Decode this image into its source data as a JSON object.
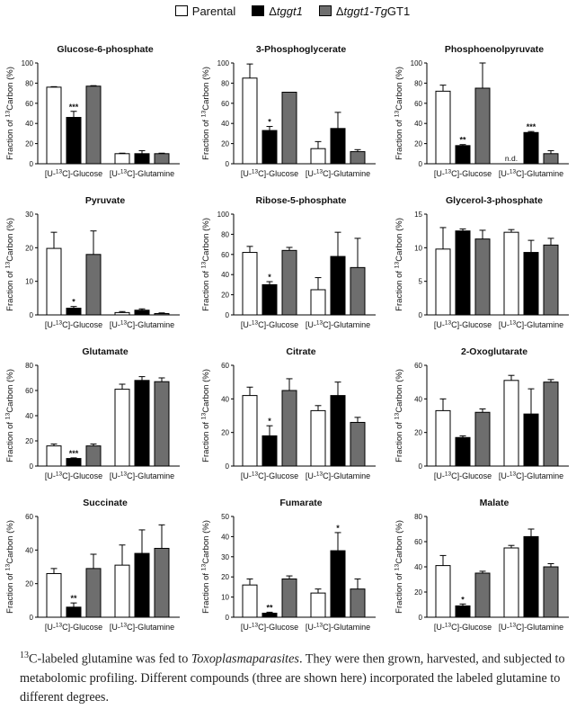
{
  "legend": {
    "parental": "Parental",
    "delta_prefix": "Δ",
    "tggt1": "tggt1",
    "comp_prefix": "Δ",
    "comp_tggt1": "tggt1-",
    "comp_tg": "Tg",
    "comp_suffix": "GT1"
  },
  "colors": {
    "parental": "#ffffff",
    "tggt1": "#000000",
    "complemented": "#6e6e6e",
    "axis": "#000000"
  },
  "ylabel": {
    "pre": "Fraction of ",
    "sup": "13",
    "post": "Carbon (%)"
  },
  "group_labels": {
    "glucose": {
      "pre": "[U-",
      "sup": "13",
      "post": "C]-Glucose"
    },
    "glutamine": {
      "pre": "[U-",
      "sup": "13",
      "post": "C]-Glutamine"
    }
  },
  "chart_data": [
    {
      "type": "bar",
      "title": "Glucose-6-phosphate",
      "ylim": [
        0,
        100
      ],
      "yticks": [
        0,
        20,
        40,
        60,
        80,
        100
      ],
      "categories": [
        "[U-13C]-Glucose",
        "[U-13C]-Glutamine"
      ],
      "series": [
        {
          "name": "Parental",
          "values": [
            76,
            10
          ],
          "errors": [
            0.5,
            0.5
          ]
        },
        {
          "name": "Δtggt1",
          "values": [
            46,
            10
          ],
          "errors": [
            6,
            3
          ]
        },
        {
          "name": "Δtggt1-TgGT1",
          "values": [
            77,
            10
          ],
          "errors": [
            0.5,
            0.5
          ]
        }
      ],
      "annotations": [
        {
          "series": 1,
          "category": 0,
          "text": "***"
        }
      ]
    },
    {
      "type": "bar",
      "title": "3-Phosphoglycerate",
      "ylim": [
        0,
        100
      ],
      "yticks": [
        0,
        20,
        40,
        60,
        80,
        100
      ],
      "categories": [
        "[U-13C]-Glucose",
        "[U-13C]-Glutamine"
      ],
      "series": [
        {
          "name": "Parental",
          "values": [
            85,
            15
          ],
          "errors": [
            14,
            7
          ]
        },
        {
          "name": "Δtggt1",
          "values": [
            33,
            35
          ],
          "errors": [
            4,
            16
          ]
        },
        {
          "name": "Δtggt1-TgGT1",
          "values": [
            71,
            12
          ],
          "errors": [
            0,
            2
          ]
        }
      ],
      "annotations": [
        {
          "series": 1,
          "category": 0,
          "text": "*"
        }
      ]
    },
    {
      "type": "bar",
      "title": "Phosphoenolpyruvate",
      "ylim": [
        0,
        100
      ],
      "yticks": [
        0,
        20,
        40,
        60,
        80,
        100
      ],
      "categories": [
        "[U-13C]-Glucose",
        "[U-13C]-Glutamine"
      ],
      "series": [
        {
          "name": "Parental",
          "values": [
            72,
            0
          ],
          "errors": [
            6,
            0
          ]
        },
        {
          "name": "Δtggt1",
          "values": [
            18,
            31
          ],
          "errors": [
            1,
            1
          ]
        },
        {
          "name": "Δtggt1-TgGT1",
          "values": [
            75,
            10
          ],
          "errors": [
            25,
            3
          ]
        }
      ],
      "annotations": [
        {
          "series": 1,
          "category": 0,
          "text": "**"
        },
        {
          "series": 1,
          "category": 1,
          "text": "***"
        }
      ],
      "nd": {
        "category": 1,
        "text": "n.d."
      }
    },
    {
      "type": "bar",
      "title": "Pyruvate",
      "ylim": [
        0,
        30
      ],
      "yticks": [
        0,
        10,
        20,
        30
      ],
      "categories": [
        "[U-13C]-Glucose",
        "[U-13C]-Glutamine"
      ],
      "series": [
        {
          "name": "Parental",
          "values": [
            19.8,
            0.7
          ],
          "errors": [
            4.8,
            0.3
          ]
        },
        {
          "name": "Δtggt1",
          "values": [
            2,
            1.4
          ],
          "errors": [
            0.5,
            0.4
          ]
        },
        {
          "name": "Δtggt1-TgGT1",
          "values": [
            18,
            0.4
          ],
          "errors": [
            7,
            0.2
          ]
        }
      ],
      "annotations": [
        {
          "series": 1,
          "category": 0,
          "text": "*"
        }
      ]
    },
    {
      "type": "bar",
      "title": "Ribose-5-phosphate",
      "ylim": [
        0,
        100
      ],
      "yticks": [
        0,
        20,
        40,
        60,
        80,
        100
      ],
      "categories": [
        "[U-13C]-Glucose",
        "[U-13C]-Glutamine"
      ],
      "series": [
        {
          "name": "Parental",
          "values": [
            62,
            25
          ],
          "errors": [
            6,
            12
          ]
        },
        {
          "name": "Δtggt1",
          "values": [
            30,
            58
          ],
          "errors": [
            3,
            24
          ]
        },
        {
          "name": "Δtggt1-TgGT1",
          "values": [
            64,
            47
          ],
          "errors": [
            3,
            29
          ]
        }
      ],
      "annotations": [
        {
          "series": 1,
          "category": 0,
          "text": "*"
        }
      ]
    },
    {
      "type": "bar",
      "title": "Glycerol-3-phosphate",
      "ylim": [
        0,
        15
      ],
      "yticks": [
        0,
        5,
        10,
        15
      ],
      "categories": [
        "[U-13C]-Glucose",
        "[U-13C]-Glutamine"
      ],
      "series": [
        {
          "name": "Parental",
          "values": [
            9.8,
            12.3
          ],
          "errors": [
            3.2,
            0.4
          ]
        },
        {
          "name": "Δtggt1",
          "values": [
            12.5,
            9.3
          ],
          "errors": [
            0.3,
            1.8
          ]
        },
        {
          "name": "Δtggt1-TgGT1",
          "values": [
            11.3,
            10.4
          ],
          "errors": [
            1.3,
            1.0
          ]
        }
      ],
      "annotations": []
    },
    {
      "type": "bar",
      "title": "Glutamate",
      "ylim": [
        0,
        80
      ],
      "yticks": [
        0,
        20,
        40,
        60,
        80
      ],
      "categories": [
        "[U-13C]-Glucose",
        "[U-13C]-Glutamine"
      ],
      "series": [
        {
          "name": "Parental",
          "values": [
            16,
            61
          ],
          "errors": [
            1.5,
            4
          ]
        },
        {
          "name": "Δtggt1",
          "values": [
            6,
            68
          ],
          "errors": [
            0.5,
            3
          ]
        },
        {
          "name": "Δtggt1-TgGT1",
          "values": [
            16,
            67
          ],
          "errors": [
            1.5,
            3
          ]
        }
      ],
      "annotations": [
        {
          "series": 1,
          "category": 0,
          "text": "***"
        }
      ]
    },
    {
      "type": "bar",
      "title": "Citrate",
      "ylim": [
        0,
        60
      ],
      "yticks": [
        0,
        20,
        40,
        60
      ],
      "categories": [
        "[U-13C]-Glucose",
        "[U-13C]-Glutamine"
      ],
      "series": [
        {
          "name": "Parental",
          "values": [
            42,
            33
          ],
          "errors": [
            5,
            3
          ]
        },
        {
          "name": "Δtggt1",
          "values": [
            18,
            42
          ],
          "errors": [
            6,
            8
          ]
        },
        {
          "name": "Δtggt1-TgGT1",
          "values": [
            45,
            26
          ],
          "errors": [
            7,
            3
          ]
        }
      ],
      "annotations": [
        {
          "series": 1,
          "category": 0,
          "text": "*"
        }
      ]
    },
    {
      "type": "bar",
      "title": "2-Oxoglutarate",
      "ylim": [
        0,
        60
      ],
      "yticks": [
        0,
        20,
        40,
        60
      ],
      "categories": [
        "[U-13C]-Glucose",
        "[U-13C]-Glutamine"
      ],
      "series": [
        {
          "name": "Parental",
          "values": [
            33,
            51
          ],
          "errors": [
            7,
            3
          ]
        },
        {
          "name": "Δtggt1",
          "values": [
            17,
            31
          ],
          "errors": [
            1,
            15
          ]
        },
        {
          "name": "Δtggt1-TgGT1",
          "values": [
            32,
            50
          ],
          "errors": [
            2,
            1.5
          ]
        }
      ],
      "annotations": []
    },
    {
      "type": "bar",
      "title": "Succinate",
      "ylim": [
        0,
        60
      ],
      "yticks": [
        0,
        20,
        40,
        60
      ],
      "categories": [
        "[U-13C]-Glucose",
        "[U-13C]-Glutamine"
      ],
      "series": [
        {
          "name": "Parental",
          "values": [
            26,
            31
          ],
          "errors": [
            3,
            12
          ]
        },
        {
          "name": "Δtggt1",
          "values": [
            6,
            38
          ],
          "errors": [
            2.5,
            14
          ]
        },
        {
          "name": "Δtggt1-TgGT1",
          "values": [
            29,
            41
          ],
          "errors": [
            8.5,
            14
          ]
        }
      ],
      "annotations": [
        {
          "series": 1,
          "category": 0,
          "text": "**"
        }
      ]
    },
    {
      "type": "bar",
      "title": "Fumarate",
      "ylim": [
        0,
        50
      ],
      "yticks": [
        0,
        10,
        20,
        30,
        40,
        50
      ],
      "title_italic": false,
      "categories": [
        "[U-13C]-Glucose",
        "[U-13C]-Glutamine"
      ],
      "series": [
        {
          "name": "Parental",
          "values": [
            16,
            12
          ],
          "errors": [
            3,
            2
          ]
        },
        {
          "name": "Δtggt1",
          "values": [
            2,
            33
          ],
          "errors": [
            0.5,
            9
          ]
        },
        {
          "name": "Δtggt1-TgGT1",
          "values": [
            19,
            14
          ],
          "errors": [
            1.5,
            5
          ]
        }
      ],
      "annotations": [
        {
          "series": 1,
          "category": 0,
          "text": "**"
        },
        {
          "series": 1,
          "category": 1,
          "text": "*"
        }
      ]
    },
    {
      "type": "bar",
      "title": "Malate",
      "ylim": [
        0,
        80
      ],
      "yticks": [
        0,
        20,
        40,
        60,
        80
      ],
      "categories": [
        "[U-13C]-Glucose",
        "[U-13C]-Glutamine"
      ],
      "series": [
        {
          "name": "Parental",
          "values": [
            41,
            55
          ],
          "errors": [
            8,
            2
          ]
        },
        {
          "name": "Δtggt1",
          "values": [
            9,
            64
          ],
          "errors": [
            1.5,
            6
          ]
        },
        {
          "name": "Δtggt1-TgGT1",
          "values": [
            35,
            40
          ],
          "errors": [
            1.5,
            2.5
          ]
        }
      ],
      "annotations": [
        {
          "series": 1,
          "category": 0,
          "text": "*"
        }
      ]
    }
  ],
  "caption": {
    "sup": "13",
    "part1": "C-labeled glutamine was fed to ",
    "italic": "Toxoplasmaparasites",
    "part2": ". They were then grown, harvested, and subjected to metabolomic profiling. Different compounds (three are shown here) incorporated the labeled glutamine to different degrees."
  }
}
